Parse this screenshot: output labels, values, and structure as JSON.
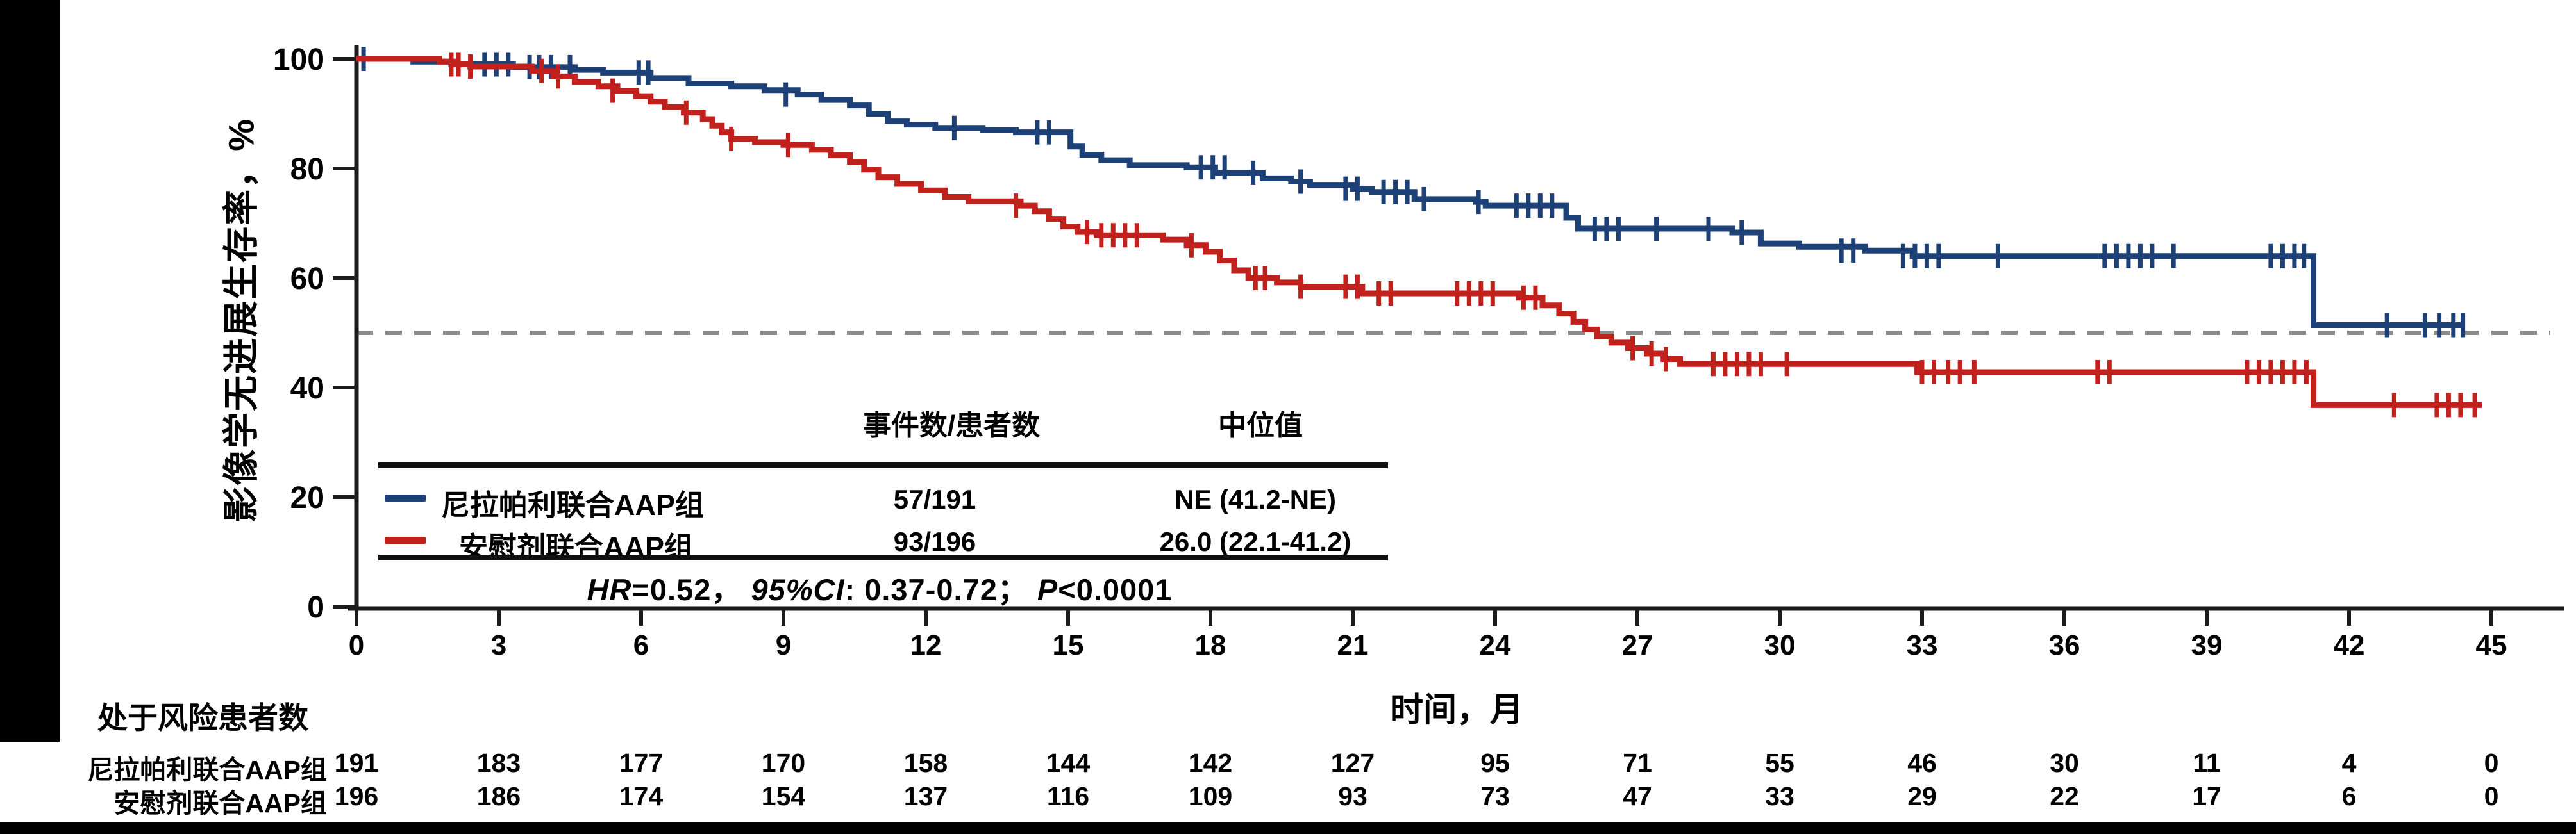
{
  "chart_data": {
    "type": "line",
    "subtype": "kaplan-meier-step",
    "title": "",
    "ylabel": "影像学无进展生存率，%",
    "xlabel": "时间，月",
    "x_ticks": [
      0,
      3,
      6,
      9,
      12,
      15,
      18,
      21,
      24,
      27,
      30,
      33,
      36,
      39,
      42,
      45
    ],
    "y_ticks": [
      0,
      20,
      40,
      60,
      80,
      100
    ],
    "xlim": [
      0,
      46.5
    ],
    "ylim": [
      0,
      100
    ],
    "grid": "off",
    "reference_line_y": 50,
    "legend_position": "embedded-table",
    "series": [
      {
        "name": "尼拉帕利联合AAP组",
        "color": "#1d4176",
        "events_patients": "57/191",
        "median": "NE (41.2-NE)",
        "end_month": 44.4,
        "steps": [
          [
            0,
            100
          ],
          [
            1.2,
            99.5
          ],
          [
            2,
            99
          ],
          [
            3.3,
            98.5
          ],
          [
            4.6,
            98
          ],
          [
            5.2,
            97.5
          ],
          [
            6.2,
            96.5
          ],
          [
            7,
            95.5
          ],
          [
            7.9,
            95
          ],
          [
            8.6,
            94.3
          ],
          [
            9.3,
            93.5
          ],
          [
            9.8,
            92.5
          ],
          [
            10.4,
            91.5
          ],
          [
            10.8,
            90
          ],
          [
            11.2,
            88.7
          ],
          [
            11.6,
            88
          ],
          [
            12.2,
            87.4
          ],
          [
            13.2,
            87
          ],
          [
            13.9,
            86.6
          ],
          [
            15.05,
            84
          ],
          [
            15.3,
            82.5
          ],
          [
            15.7,
            81.5
          ],
          [
            16.3,
            80.6
          ],
          [
            17.5,
            80.2
          ],
          [
            18.1,
            79.2
          ],
          [
            19.1,
            78.2
          ],
          [
            19.7,
            77.6
          ],
          [
            20.1,
            77
          ],
          [
            21,
            76.3
          ],
          [
            21.4,
            75.7
          ],
          [
            22.3,
            74.4
          ],
          [
            23.6,
            73.9
          ],
          [
            23.8,
            73.2
          ],
          [
            25.5,
            71
          ],
          [
            25.75,
            69
          ],
          [
            29,
            68.3
          ],
          [
            29.6,
            66.3
          ],
          [
            30.4,
            65.7
          ],
          [
            31.8,
            65
          ],
          [
            32.8,
            64
          ],
          [
            41.25,
            51.4
          ]
        ],
        "censors": [
          [
            0.15,
            100
          ],
          [
            2.7,
            99
          ],
          [
            2.95,
            99
          ],
          [
            3.2,
            99
          ],
          [
            3.65,
            98.5
          ],
          [
            3.85,
            98.5
          ],
          [
            4.1,
            98.5
          ],
          [
            4.5,
            98.5
          ],
          [
            5.95,
            97.5
          ],
          [
            6.15,
            97.5
          ],
          [
            9.05,
            93.5
          ],
          [
            12.6,
            87.4
          ],
          [
            14.35,
            86.6
          ],
          [
            14.6,
            86.6
          ],
          [
            17.8,
            80.2
          ],
          [
            18.05,
            80.2
          ],
          [
            18.3,
            80.2
          ],
          [
            18.9,
            79.2
          ],
          [
            19.9,
            77.6
          ],
          [
            20.85,
            76.3
          ],
          [
            21.1,
            76.3
          ],
          [
            21.65,
            75.7
          ],
          [
            21.9,
            75.7
          ],
          [
            22.15,
            75.7
          ],
          [
            22.5,
            74.4
          ],
          [
            23.65,
            73.9
          ],
          [
            24.45,
            73.2
          ],
          [
            24.7,
            73.2
          ],
          [
            24.95,
            73.2
          ],
          [
            25.2,
            73.2
          ],
          [
            26.1,
            69
          ],
          [
            26.35,
            69
          ],
          [
            26.6,
            69
          ],
          [
            27.4,
            69
          ],
          [
            28.5,
            69
          ],
          [
            29.2,
            68.3
          ],
          [
            31.3,
            65
          ],
          [
            31.55,
            65
          ],
          [
            32.6,
            64
          ],
          [
            32.85,
            64
          ],
          [
            33.1,
            64
          ],
          [
            33.35,
            64
          ],
          [
            34.6,
            64
          ],
          [
            36.85,
            64
          ],
          [
            37.1,
            64
          ],
          [
            37.35,
            64
          ],
          [
            37.6,
            64
          ],
          [
            37.85,
            64
          ],
          [
            38.3,
            64
          ],
          [
            40.35,
            64
          ],
          [
            40.6,
            64
          ],
          [
            40.85,
            64
          ],
          [
            41.05,
            64
          ],
          [
            42.8,
            51.4
          ],
          [
            43.6,
            51.4
          ],
          [
            43.9,
            51.4
          ],
          [
            44.2,
            51.4
          ],
          [
            44.4,
            51.4
          ]
        ]
      },
      {
        "name": "安慰剂联合AAP组",
        "color": "#c1211d",
        "events_patients": "93/196",
        "median": "26.0 (22.1-41.2)",
        "end_month": 44.8,
        "steps": [
          [
            0,
            100
          ],
          [
            1.75,
            99.5
          ],
          [
            2.05,
            99
          ],
          [
            2.4,
            98.6
          ],
          [
            3.7,
            97.8
          ],
          [
            4.15,
            96.8
          ],
          [
            4.6,
            95.8
          ],
          [
            5.1,
            95
          ],
          [
            5.5,
            94.2
          ],
          [
            5.9,
            93.2
          ],
          [
            6.2,
            92.2
          ],
          [
            6.5,
            91.2
          ],
          [
            6.9,
            90.2
          ],
          [
            7.3,
            89
          ],
          [
            7.5,
            87.8
          ],
          [
            7.7,
            86.6
          ],
          [
            7.9,
            85.4
          ],
          [
            8.4,
            84.8
          ],
          [
            9,
            84.3
          ],
          [
            9.6,
            83.4
          ],
          [
            10,
            82.4
          ],
          [
            10.4,
            81.2
          ],
          [
            10.7,
            79.8
          ],
          [
            11,
            78.4
          ],
          [
            11.4,
            77.2
          ],
          [
            11.9,
            76
          ],
          [
            12.4,
            74.8
          ],
          [
            12.9,
            74
          ],
          [
            14,
            73.2
          ],
          [
            14.3,
            72.2
          ],
          [
            14.6,
            70.8
          ],
          [
            14.9,
            69.4
          ],
          [
            15.2,
            68.4
          ],
          [
            15.6,
            67.8
          ],
          [
            17,
            67
          ],
          [
            17.5,
            66
          ],
          [
            17.9,
            64.8
          ],
          [
            18.2,
            63.2
          ],
          [
            18.5,
            61.4
          ],
          [
            18.8,
            60
          ],
          [
            19.4,
            59.2
          ],
          [
            19.9,
            58.4
          ],
          [
            21.2,
            57.2
          ],
          [
            24.5,
            56.4
          ],
          [
            25,
            55
          ],
          [
            25.35,
            53.5
          ],
          [
            25.65,
            52
          ],
          [
            25.9,
            50.6
          ],
          [
            26.15,
            49.3
          ],
          [
            26.45,
            48.2
          ],
          [
            26.8,
            47.2
          ],
          [
            27.2,
            46.2
          ],
          [
            27.55,
            45.2
          ],
          [
            27.9,
            44.3
          ],
          [
            32.9,
            42.8
          ],
          [
            41.25,
            36.8
          ]
        ],
        "censors": [
          [
            2,
            99
          ],
          [
            2.15,
            99
          ],
          [
            2.4,
            98.6
          ],
          [
            3.9,
            97.8
          ],
          [
            4.25,
            96.8
          ],
          [
            5.4,
            94.2
          ],
          [
            6.95,
            90.2
          ],
          [
            7.9,
            85.4
          ],
          [
            9.1,
            84.3
          ],
          [
            13.9,
            73.2
          ],
          [
            15.4,
            68.4
          ],
          [
            15.7,
            67.8
          ],
          [
            15.95,
            67.8
          ],
          [
            16.2,
            67.8
          ],
          [
            16.45,
            67.8
          ],
          [
            17.6,
            66
          ],
          [
            18.95,
            60
          ],
          [
            19.15,
            60
          ],
          [
            19.9,
            58.4
          ],
          [
            20.85,
            58.4
          ],
          [
            21.1,
            58.4
          ],
          [
            21.55,
            57.2
          ],
          [
            21.8,
            57.2
          ],
          [
            23.2,
            57.2
          ],
          [
            23.45,
            57.2
          ],
          [
            23.7,
            57.2
          ],
          [
            23.95,
            57.2
          ],
          [
            24.6,
            56.4
          ],
          [
            24.85,
            56.4
          ],
          [
            26.9,
            47.2
          ],
          [
            27.3,
            46.2
          ],
          [
            27.6,
            45.2
          ],
          [
            28.6,
            44.3
          ],
          [
            28.85,
            44.3
          ],
          [
            29.1,
            44.3
          ],
          [
            29.35,
            44.3
          ],
          [
            29.6,
            44.3
          ],
          [
            30.15,
            44.3
          ],
          [
            33,
            42.8
          ],
          [
            33.25,
            42.8
          ],
          [
            33.55,
            42.8
          ],
          [
            33.8,
            42.8
          ],
          [
            34.1,
            42.8
          ],
          [
            36.7,
            42.8
          ],
          [
            36.95,
            42.8
          ],
          [
            39.85,
            42.8
          ],
          [
            40.1,
            42.8
          ],
          [
            40.35,
            42.8
          ],
          [
            40.6,
            42.8
          ],
          [
            40.85,
            42.8
          ],
          [
            41.1,
            42.8
          ],
          [
            42.95,
            36.8
          ],
          [
            43.85,
            36.8
          ],
          [
            44.1,
            36.8
          ],
          [
            44.35,
            36.8
          ],
          [
            44.65,
            36.8
          ]
        ]
      }
    ]
  },
  "stats_table": {
    "col_events": "事件数/患者数",
    "col_median": "中位值"
  },
  "hr_line": {
    "hr_label": "HR",
    "hr_value": "=0.52，",
    "ci_label": "95%CI",
    "ci_value": ": 0.37-0.72；",
    "p_label": "P",
    "p_value": "<0.0001"
  },
  "risk_table": {
    "title": "处于风险患者数",
    "rows": [
      {
        "label": "尼拉帕利联合AAP组",
        "counts": [
          191,
          183,
          177,
          170,
          158,
          144,
          142,
          127,
          95,
          71,
          55,
          46,
          30,
          11,
          4,
          0
        ]
      },
      {
        "label": "安慰剂联合AAP组",
        "counts": [
          196,
          186,
          174,
          154,
          137,
          116,
          109,
          93,
          73,
          47,
          33,
          29,
          22,
          17,
          6,
          0
        ]
      }
    ]
  },
  "colors": {
    "niraparib_line": "#1d4176",
    "placebo_line": "#c1211d",
    "axis": "#1b1b1b",
    "reference_dash": "#8c8c8c",
    "text": "#000000"
  }
}
